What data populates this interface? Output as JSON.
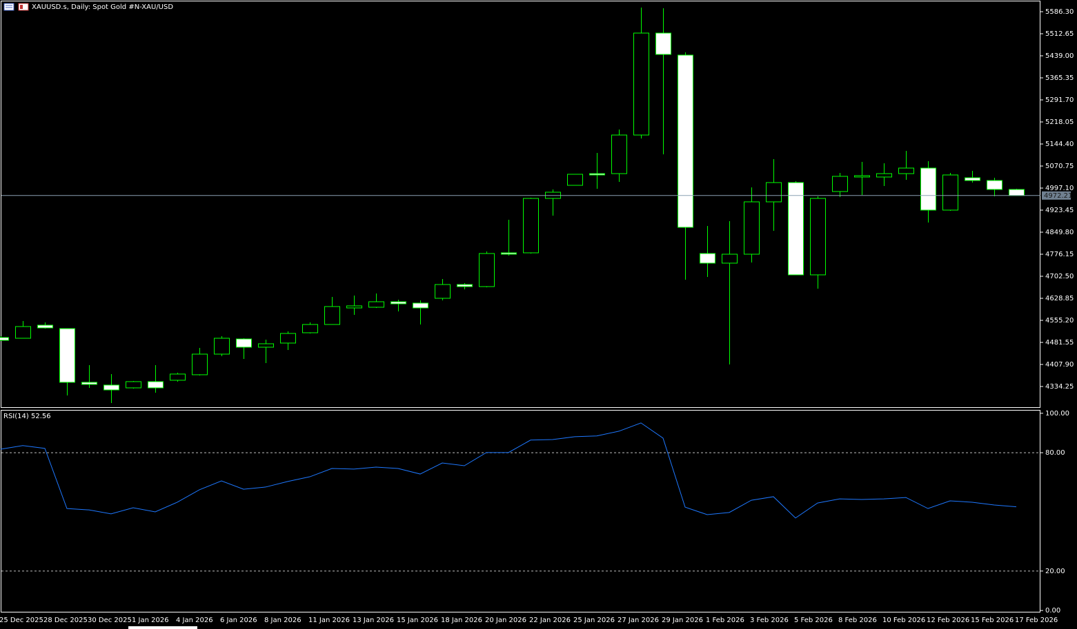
{
  "header": {
    "title": "XAUUSD.s, Daily:  Spot Gold #N-XAU/USD"
  },
  "chart_data": [
    {
      "type": "candlestick",
      "color": "#00ff00",
      "down_fill": "#ffffff",
      "up_fill": "#000000",
      "categories": [
        "25 Dec 2025",
        null,
        "28 Dec 2025",
        null,
        "30 Dec 2025",
        null,
        "1 Jan 2026",
        null,
        "4 Jan 2026",
        null,
        "6 Jan 2026",
        null,
        "8 Jan 2026",
        null,
        "11 Jan 2026",
        null,
        "13 Jan 2026",
        null,
        "15 Jan 2026",
        null,
        "18 Jan 2026",
        null,
        "20 Jan 2026",
        null,
        "22 Jan 2026",
        null,
        "25 Jan 2026",
        null,
        "27 Jan 2026",
        null,
        "29 Jan 2026",
        null,
        "1 Feb 2026",
        null,
        "3 Feb 2026",
        null,
        "5 Feb 2026",
        null,
        "8 Feb 2026",
        null,
        "10 Feb 2026",
        null,
        "12 Feb 2026",
        null,
        "15 Feb 2026",
        null,
        "17 Feb 2026"
      ],
      "open": [
        4497.8,
        4495.4,
        4539.1,
        4527.7,
        4348.2,
        4339.0,
        4329.7,
        4350.5,
        4355.1,
        4373.5,
        4442.4,
        4493.1,
        4465.5,
        4479.3,
        4513.8,
        4541.4,
        4596.7,
        4599.0,
        4617.4,
        4612.8,
        4628.9,
        4674.9,
        4668.0,
        4780.8,
        4780.8,
        4962.6,
        5006.3,
        5045.4,
        5045.4,
        5174.3,
        5514.9,
        5441.3,
        4778.5,
        4746.3,
        4776.2,
        4951.1,
        5015.5,
        4707.2,
        4985.6,
        5034.0,
        5034.0,
        5045.4,
        5063.9,
        4923.5,
        5031.6,
        5022.4,
        4992.5
      ],
      "high": [
        4502.3,
        4553.0,
        4548.4,
        4527.7,
        4405.7,
        4375.8,
        4352.8,
        4405.7,
        4380.4,
        4463.2,
        4502.3,
        4495.4,
        4490.8,
        4518.4,
        4548.4,
        4633.5,
        4638.1,
        4645.0,
        4624.3,
        4622.0,
        4693.3,
        4679.5,
        4785.4,
        4891.3,
        4964.9,
        4992.5,
        5043.2,
        5114.5,
        5192.8,
        5600.1,
        5597.8,
        5450.5,
        4870.6,
        4886.7,
        4999.4,
        5093.8,
        5020.1,
        4969.5,
        5047.8,
        5084.6,
        5080.0,
        5121.4,
        5086.9,
        5047.8,
        5054.6,
        5031.6,
        4994.8
      ],
      "low": [
        4486.2,
        4495.4,
        4527.7,
        4304.4,
        4329.7,
        4279.1,
        4327.4,
        4313.6,
        4350.5,
        4371.2,
        4435.6,
        4426.4,
        4412.6,
        4456.3,
        4511.5,
        4541.4,
        4573.7,
        4596.7,
        4585.2,
        4541.4,
        4622.0,
        4658.8,
        4665.7,
        4771.6,
        4778.5,
        4905.1,
        5006.3,
        4994.8,
        5017.8,
        5162.8,
        5109.9,
        4691.0,
        4700.3,
        4408.0,
        4748.6,
        4854.4,
        4707.2,
        4661.1,
        4967.2,
        4974.1,
        5004.0,
        5024.7,
        4882.1,
        4921.2,
        5015.5,
        4969.5,
        4972.21
      ],
      "close": [
        4488.5,
        4534.5,
        4530.0,
        4348.2,
        4341.3,
        4322.8,
        4350.5,
        4329.7,
        4375.8,
        4442.4,
        4495.4,
        4465.5,
        4477.0,
        4511.5,
        4541.4,
        4601.3,
        4603.6,
        4617.4,
        4610.5,
        4596.7,
        4674.9,
        4668.0,
        4778.5,
        4776.2,
        4962.6,
        4983.3,
        5043.2,
        5040.9,
        5174.3,
        5514.9,
        5443.6,
        4866.0,
        4746.3,
        4776.2,
        4951.1,
        5015.5,
        4707.2,
        4962.6,
        5036.3,
        5038.6,
        5045.4,
        5063.9,
        4923.5,
        5040.9,
        5022.4,
        4992.5,
        4972.21
      ],
      "ylim": [
        4265.2,
        5625.4
      ],
      "yticks": [
        {
          "value": 5586.3,
          "label": "5586.30"
        },
        {
          "value": 5512.65,
          "label": "5512.65"
        },
        {
          "value": 5439,
          "label": "5439.00"
        },
        {
          "value": 5365.35,
          "label": "5365.35"
        },
        {
          "value": 5291.7,
          "label": "5291.70"
        },
        {
          "value": 5218.05,
          "label": "5218.05"
        },
        {
          "value": 5144.4,
          "label": "5144.40"
        },
        {
          "value": 5070.75,
          "label": "5070.75"
        },
        {
          "value": 4997.1,
          "label": "4997.10"
        },
        {
          "value": 4923.45,
          "label": "4923.45"
        },
        {
          "value": 4849.8,
          "label": "4849.80"
        },
        {
          "value": 4776.15,
          "label": "4776.15"
        },
        {
          "value": 4702.5,
          "label": "4702.50"
        },
        {
          "value": 4628.85,
          "label": "4628.85"
        },
        {
          "value": 4555.2,
          "label": "4555.20"
        },
        {
          "value": 4481.55,
          "label": "4481.55"
        },
        {
          "value": 4407.9,
          "label": "4407.90"
        },
        {
          "value": 4334.25,
          "label": "4334.25"
        }
      ]
    },
    {
      "type": "line",
      "title": "RSI(14)",
      "color": "#1e78ff",
      "values": [
        81.8,
        83.6,
        82.2,
        51.7,
        51.0,
        49.0,
        52.1,
        50.0,
        54.9,
        61.2,
        65.7,
        61.5,
        62.6,
        65.4,
        67.8,
        72.0,
        71.7,
        72.7,
        72.0,
        69.2,
        74.8,
        73.4,
        80.1,
        80.1,
        86.4,
        86.7,
        88.1,
        88.5,
        90.9,
        95.1,
        87.4,
        52.4,
        48.6,
        49.7,
        55.9,
        57.7,
        46.9,
        54.5,
        56.6,
        56.3,
        56.6,
        57.3,
        51.7,
        55.6,
        54.9,
        53.5,
        52.56
      ],
      "levels": [
        80,
        20
      ],
      "ylim": [
        -1,
        101.7
      ],
      "yticks": [
        {
          "value": 100,
          "label": "100.00"
        },
        {
          "value": 80,
          "label": "80.00"
        },
        {
          "value": 20,
          "label": "20.00"
        },
        {
          "value": 0,
          "label": "0.00"
        }
      ]
    }
  ]
}
